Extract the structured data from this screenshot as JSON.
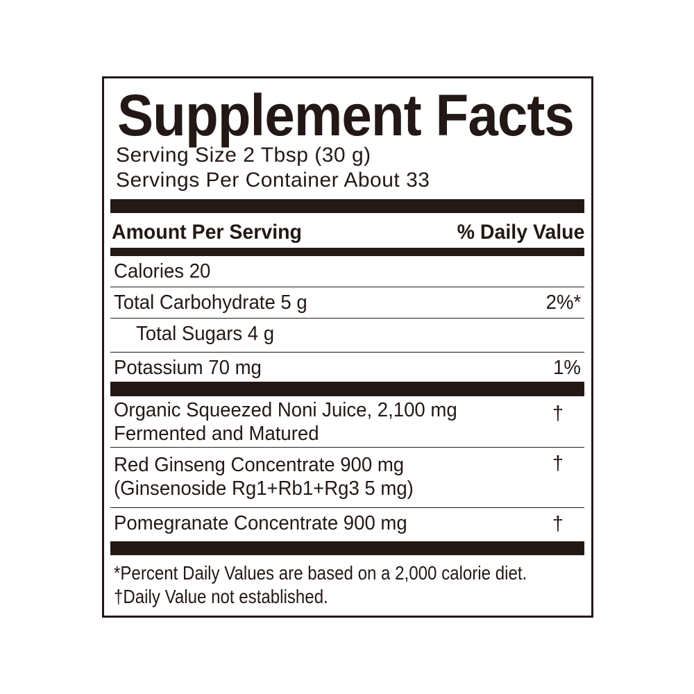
{
  "title": "Supplement Facts",
  "serving_size": "Serving Size 2 Tbsp (30 g)",
  "servings_per_container": "Servings Per Container About 33",
  "header": {
    "amount": "Amount Per Serving",
    "daily_value": "% Daily Value"
  },
  "nutrients": [
    {
      "name": "Calories 20",
      "dv": ""
    },
    {
      "name": "Total Carbohydrate 5 g",
      "dv": "2%*"
    },
    {
      "name": "Total Sugars 4 g",
      "dv": ""
    },
    {
      "name": "Potassium 70 mg",
      "dv": "1%"
    }
  ],
  "ingredients": [
    {
      "line1": "Organic Squeezed Noni Juice, 2,100 mg",
      "line2": "Fermented and Matured",
      "dv": "†"
    },
    {
      "line1": "Red Ginseng Concentrate 900 mg",
      "line2": "(Ginsenoside Rg1+Rb1+Rg3 5 mg)",
      "dv": "†"
    },
    {
      "line1": "Pomegranate Concentrate 900 mg",
      "dv": "†"
    }
  ],
  "footnotes": [
    "*Percent Daily Values are based on a 2,000 calorie diet.",
    "†Daily Value not established."
  ],
  "colors": {
    "ink": "#231815",
    "background": "#ffffff"
  }
}
